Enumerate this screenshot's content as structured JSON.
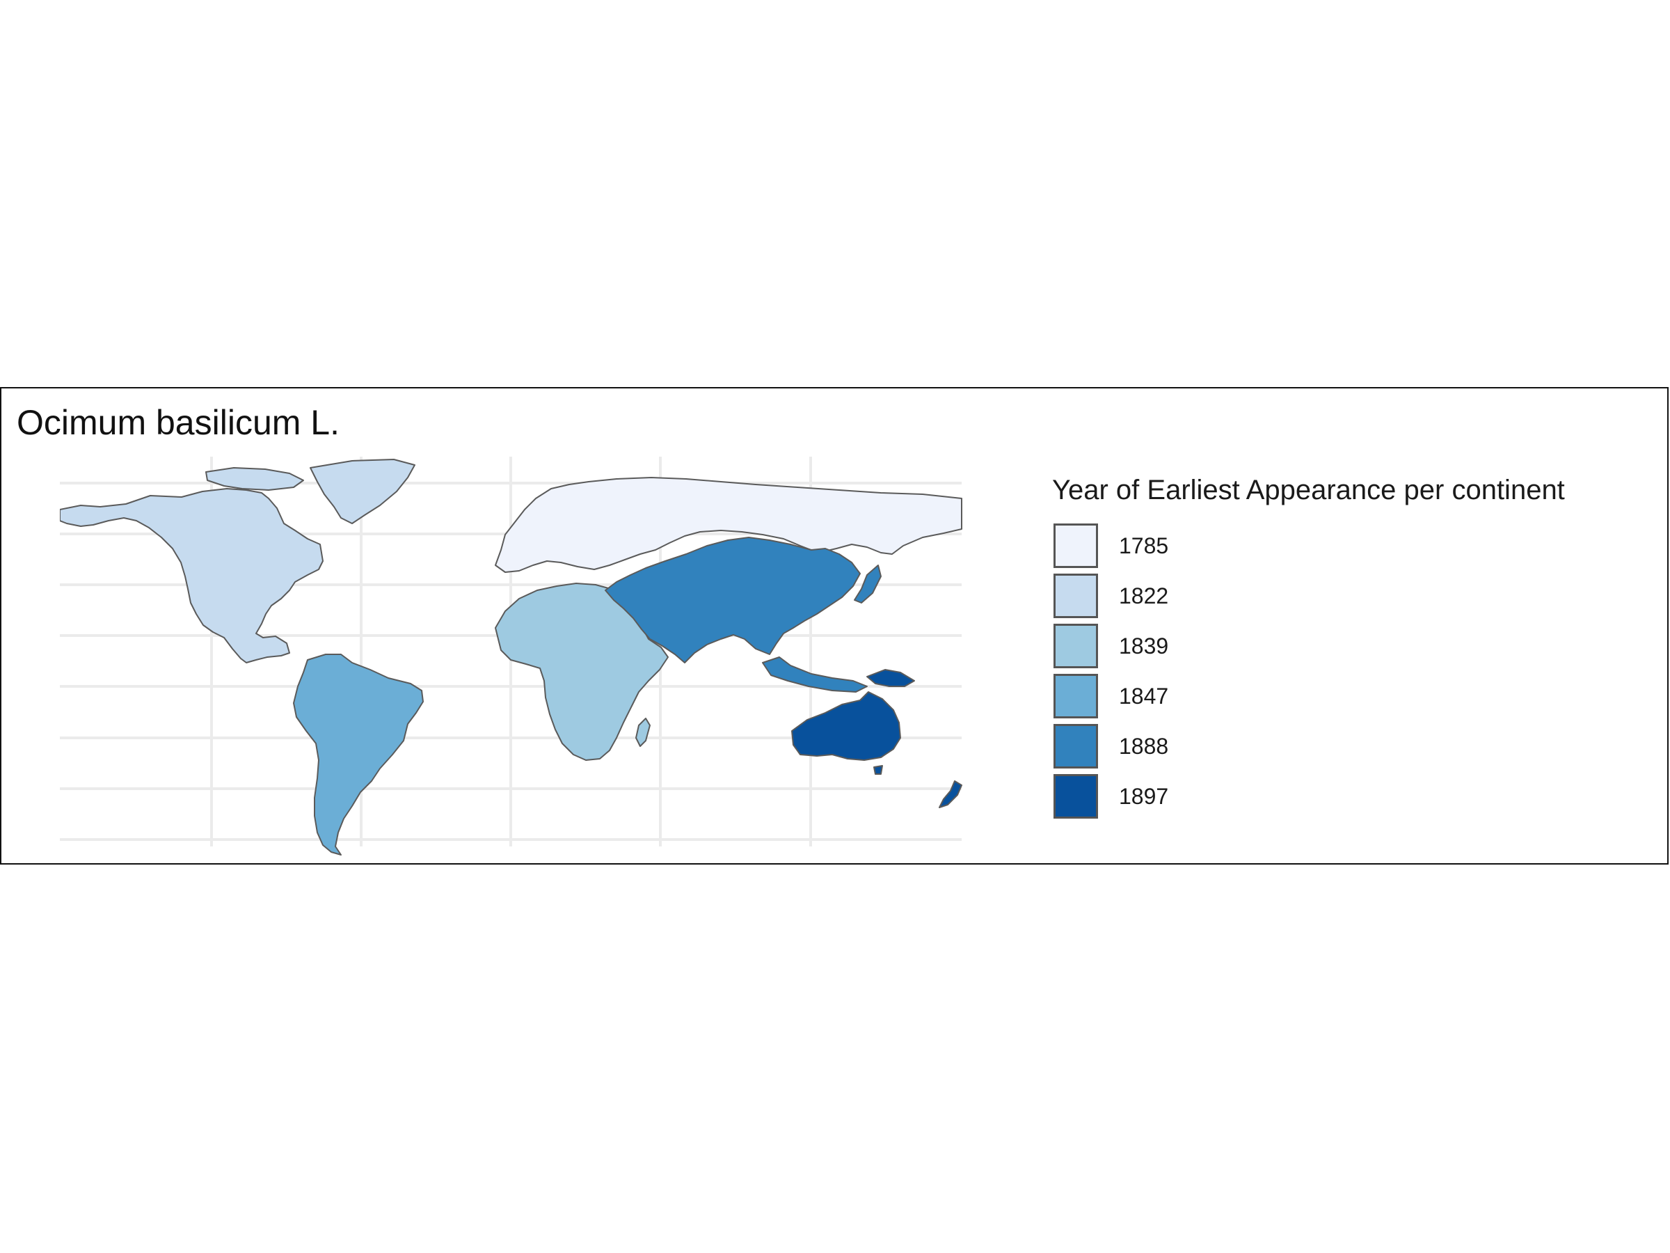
{
  "map": {
    "title": "Ocimum basilicum L.",
    "projection": "equirectangular",
    "graticule": "on",
    "colors": {
      "background": "#ffffff",
      "graticule": "#ebebeb",
      "border": "#5a5a5a"
    },
    "regions": [
      {
        "name": "Europe",
        "year": 1785,
        "color": "#eff3fc"
      },
      {
        "name": "North America",
        "year": 1822,
        "color": "#c6dbef"
      },
      {
        "name": "Africa",
        "year": 1839,
        "color": "#9ecae1"
      },
      {
        "name": "South America",
        "year": 1847,
        "color": "#6baed6"
      },
      {
        "name": "Asia",
        "year": 1888,
        "color": "#3182bd"
      },
      {
        "name": "Oceania",
        "year": 1897,
        "color": "#08519c"
      }
    ]
  },
  "legend": {
    "title": "Year of Earliest Appearance per continent",
    "placement": "right",
    "items": [
      {
        "label": "1785",
        "color": "#eff3fc"
      },
      {
        "label": "1822",
        "color": "#c6dbef"
      },
      {
        "label": "1839",
        "color": "#9ecae1"
      },
      {
        "label": "1847",
        "color": "#6baed6"
      },
      {
        "label": "1888",
        "color": "#3182bd"
      },
      {
        "label": "1897",
        "color": "#08519c"
      }
    ]
  }
}
